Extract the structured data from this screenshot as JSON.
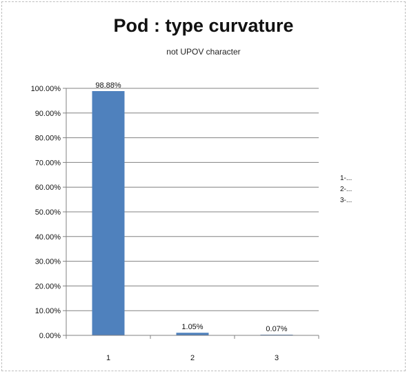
{
  "chart_data": {
    "type": "bar",
    "title": "Pod : type curvature",
    "subtitle": "not UPOV character",
    "xlabel": "",
    "ylabel": "",
    "categories": [
      "1",
      "2",
      "3"
    ],
    "values": [
      98.88,
      1.05,
      0.07
    ],
    "data_labels": [
      "98.88%",
      "1.05%",
      "0.07%"
    ],
    "ylim": [
      0,
      100
    ],
    "yticks": [
      0,
      10,
      20,
      30,
      40,
      50,
      60,
      70,
      80,
      90,
      100
    ],
    "ytick_labels": [
      "0.00%",
      "10.00%",
      "20.00%",
      "30.00%",
      "40.00%",
      "50.00%",
      "60.00%",
      "70.00%",
      "80.00%",
      "90.00%",
      "100.00%"
    ],
    "grid": true,
    "legend": {
      "placement": "right",
      "entries": [
        "1-...",
        "2-...",
        "3-..."
      ]
    },
    "colors": {
      "bar": "#4F81BD",
      "grid": "#808080",
      "axis": "#808080"
    }
  }
}
